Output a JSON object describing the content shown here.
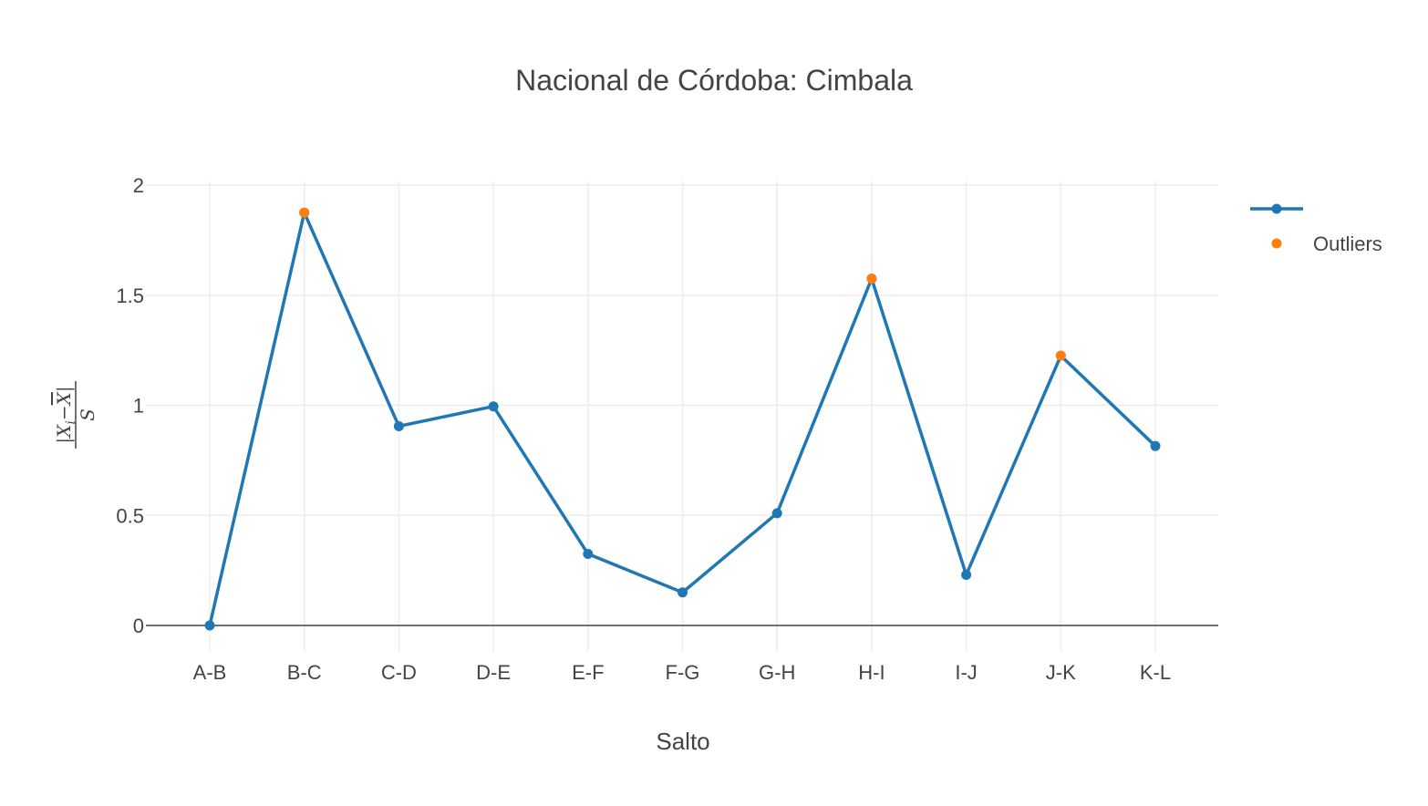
{
  "chart_data": {
    "type": "line",
    "title": "Nacional de Córdoba: Cimbala",
    "xlabel": "Salto",
    "ylabel": "|Xi − X̄| / S",
    "ylabel_parts": {
      "numerator_var": "X",
      "numerator_sub": "i",
      "minus": "−",
      "mean_var": "X",
      "denominator_var": "S"
    },
    "categories": [
      "A-B",
      "B-C",
      "C-D",
      "D-E",
      "E-F",
      "F-G",
      "G-H",
      "H-I",
      "I-J",
      "J-K",
      "K-L"
    ],
    "series": [
      {
        "name": "",
        "mode": "lines+markers",
        "color": "#1f77b4",
        "values": [
          0,
          1.875,
          0.905,
          0.995,
          0.325,
          0.15,
          0.51,
          1.575,
          0.23,
          1.225,
          0.815
        ]
      },
      {
        "name": "Outliers",
        "mode": "markers",
        "color": "#ff7f0e",
        "x": [
          "B-C",
          "H-I",
          "J-K"
        ],
        "values": [
          1.875,
          1.575,
          1.225
        ]
      }
    ],
    "yticks": [
      "0",
      "0.5",
      "1",
      "1.5",
      "2"
    ],
    "ylim": [
      -0.12,
      2.0
    ],
    "grid": true,
    "legend": "top-right"
  }
}
